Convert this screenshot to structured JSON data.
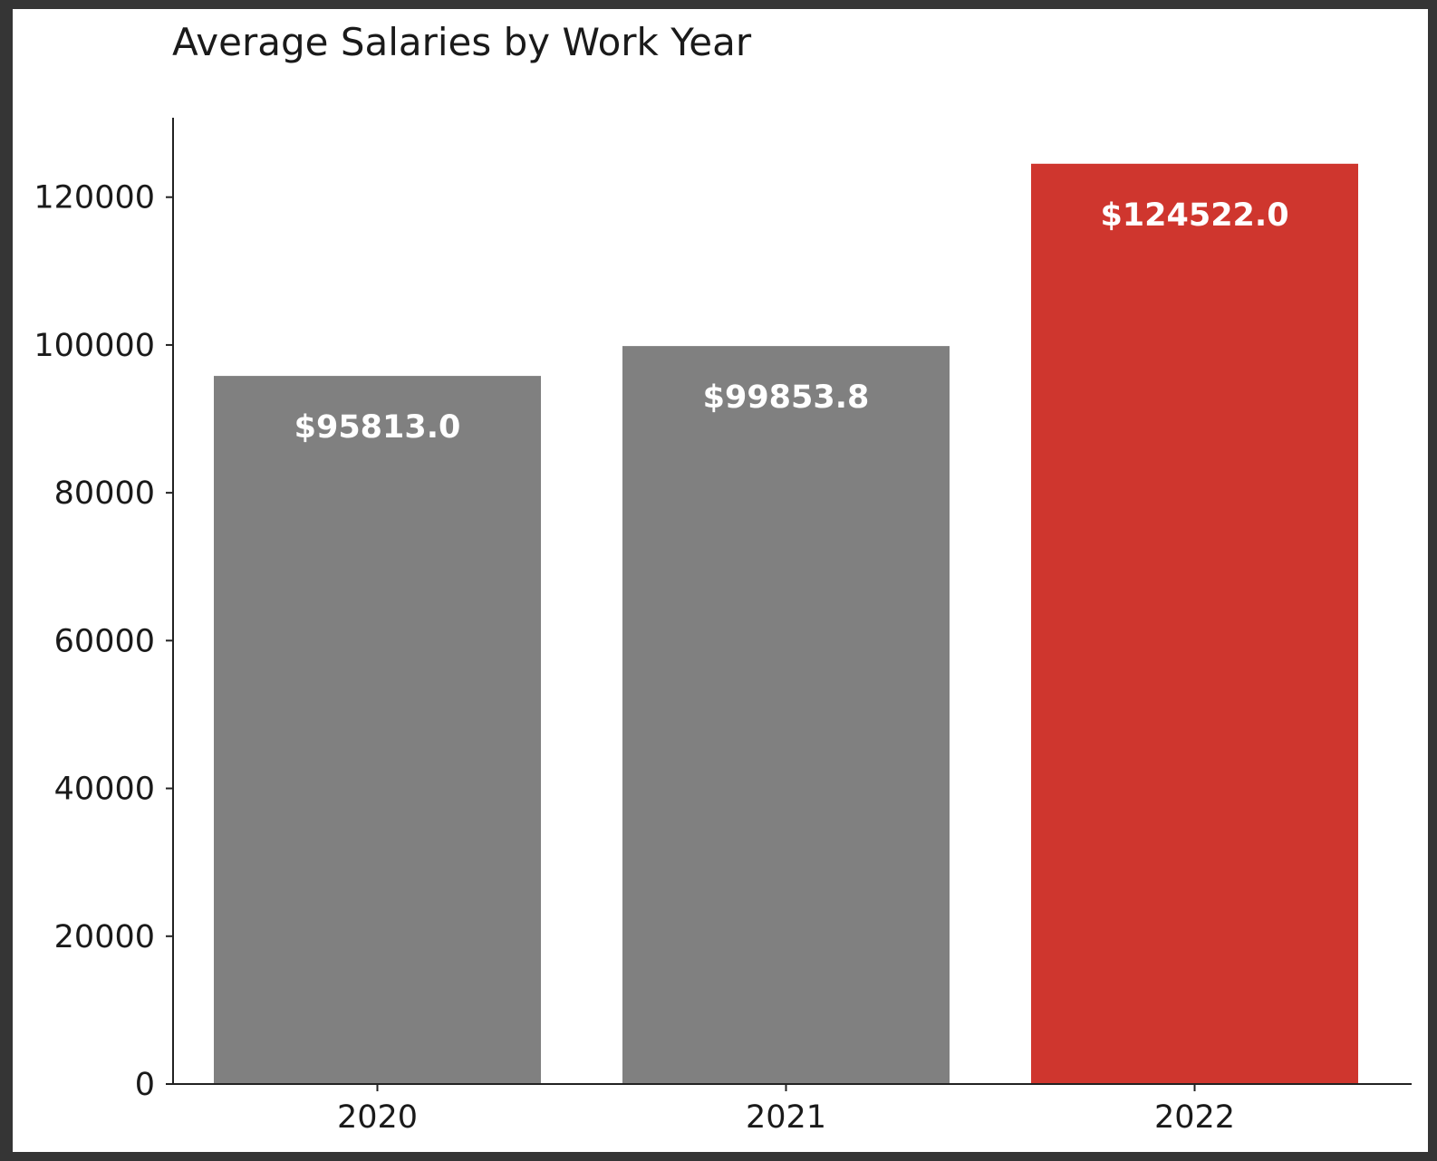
{
  "chart_data": {
    "type": "bar",
    "title": "Average Salaries by Work Year",
    "xlabel": "",
    "ylabel": "",
    "categories": [
      "2020",
      "2021",
      "2022"
    ],
    "values": [
      95813.0,
      99853.8,
      124522.0
    ],
    "data_labels": [
      "$95813.0",
      "$99853.8",
      "$124522.0"
    ],
    "bar_colors": [
      "#808080",
      "#808080",
      "#cf362e"
    ],
    "ylim": [
      0,
      130748
    ],
    "yticks": [
      0,
      20000,
      40000,
      60000,
      80000,
      100000,
      120000
    ],
    "ytick_labels": [
      "0",
      "20000",
      "40000",
      "60000",
      "80000",
      "100000",
      "120000"
    ],
    "grid": false,
    "legend": "none"
  }
}
